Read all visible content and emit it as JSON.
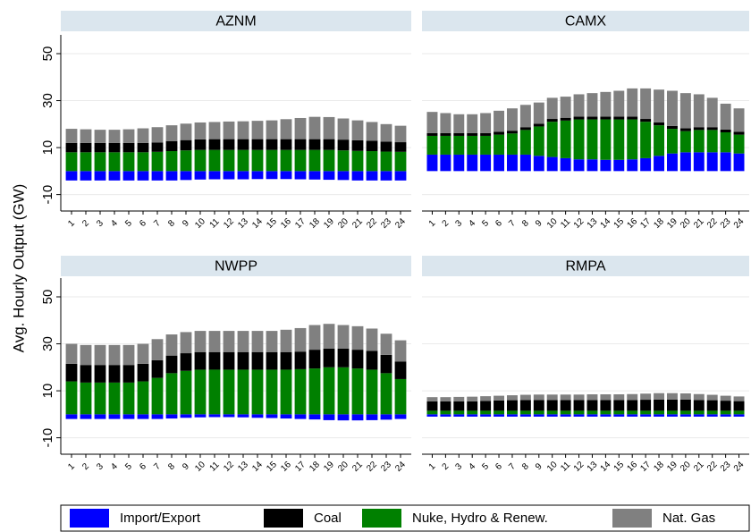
{
  "chart_data": [
    {
      "type": "bar",
      "title": "AZNM",
      "ylabel": "Avg. Hourly Output (GW)",
      "categories": [
        "1",
        "2",
        "3",
        "4",
        "5",
        "6",
        "7",
        "8",
        "9",
        "10",
        "11",
        "12",
        "13",
        "14",
        "15",
        "16",
        "17",
        "18",
        "19",
        "20",
        "21",
        "22",
        "23",
        "24"
      ],
      "series": [
        {
          "name": "Import/Export",
          "color": "#0000ff",
          "values": [
            -4,
            -4,
            -4,
            -4,
            -4,
            -4,
            -4,
            -4,
            -3.8,
            -3.6,
            -3.5,
            -3.5,
            -3.5,
            -3.4,
            -3.4,
            -3.4,
            -3.5,
            -3.6,
            -3.7,
            -3.8,
            -4,
            -4,
            -4,
            -4
          ]
        },
        {
          "name": "Coal",
          "color": "#000000",
          "values": [
            4,
            4,
            4,
            4,
            4,
            4,
            4,
            4.2,
            4.4,
            4.5,
            4.6,
            4.6,
            4.6,
            4.6,
            4.6,
            4.6,
            4.6,
            4.6,
            4.6,
            4.6,
            4.5,
            4.4,
            4.2,
            4.1
          ]
        },
        {
          "name": "Nuke, Hydro & Renew.",
          "color": "#008000",
          "values": [
            8,
            8,
            8,
            8,
            8,
            8,
            8.2,
            8.5,
            8.8,
            9,
            9,
            9,
            9,
            9,
            9,
            9,
            9,
            9,
            9,
            8.8,
            8.6,
            8.5,
            8.3,
            8.2
          ]
        },
        {
          "name": "Nat. Gas",
          "color": "#808080",
          "values": [
            6,
            5.8,
            5.6,
            5.6,
            5.8,
            6.2,
            6.5,
            6.8,
            7,
            7.2,
            7.3,
            7.5,
            7.6,
            7.8,
            8,
            8.5,
            9,
            9.5,
            9.4,
            9,
            8.5,
            8,
            7.5,
            7
          ]
        }
      ],
      "ylim": [
        -17,
        58
      ],
      "yticks": [
        -10,
        10,
        30,
        50
      ],
      "grid": true
    },
    {
      "type": "bar",
      "title": "CAMX",
      "categories": [
        "1",
        "2",
        "3",
        "4",
        "5",
        "6",
        "7",
        "8",
        "9",
        "10",
        "11",
        "12",
        "13",
        "14",
        "15",
        "16",
        "17",
        "18",
        "19",
        "20",
        "21",
        "22",
        "23",
        "24"
      ],
      "series": [
        {
          "name": "Import/Export",
          "color": "#0000ff",
          "values": [
            7,
            7,
            7,
            7,
            7,
            7,
            7,
            7,
            6.5,
            6,
            5.5,
            5,
            5,
            4.8,
            4.8,
            5,
            5.5,
            6.5,
            7.5,
            8,
            8,
            8,
            8,
            7.5
          ]
        },
        {
          "name": "Coal",
          "color": "#000000",
          "values": [
            1.2,
            1.2,
            1.2,
            1.2,
            1.2,
            1.2,
            1.2,
            1.2,
            1.2,
            1.2,
            1.2,
            1.2,
            1.2,
            1.2,
            1.2,
            1.2,
            1.2,
            1.2,
            1.2,
            1.2,
            1.2,
            1.2,
            1.2,
            1.2
          ]
        },
        {
          "name": "Nuke, Hydro & Renew.",
          "color": "#008000",
          "values": [
            8,
            8,
            8,
            8,
            8,
            8.5,
            9,
            10.5,
            12.5,
            15,
            16,
            17,
            17,
            17.2,
            17.2,
            17,
            15.5,
            13,
            10.5,
            9,
            9.5,
            9.5,
            8.5,
            8
          ]
        },
        {
          "name": "Nat. Gas",
          "color": "#808080",
          "values": [
            9,
            8.5,
            8,
            8,
            8.5,
            9,
            9.5,
            9.5,
            9,
            9,
            9,
            9.5,
            10,
            10.5,
            11,
            12,
            13,
            14,
            15,
            15,
            14,
            12.5,
            11,
            10
          ]
        }
      ],
      "ylim": [
        -17,
        58
      ],
      "yticks": [
        -10,
        10,
        30,
        50
      ],
      "grid": true
    },
    {
      "type": "bar",
      "title": "NWPP",
      "categories": [
        "1",
        "2",
        "3",
        "4",
        "5",
        "6",
        "7",
        "8",
        "9",
        "10",
        "11",
        "12",
        "13",
        "14",
        "15",
        "16",
        "17",
        "18",
        "19",
        "20",
        "21",
        "22",
        "23",
        "24"
      ],
      "series": [
        {
          "name": "Import/Export",
          "color": "#0000ff",
          "values": [
            -2,
            -2,
            -2,
            -2,
            -2,
            -2,
            -2,
            -1.8,
            -1.5,
            -1.3,
            -1.2,
            -1.2,
            -1.3,
            -1.5,
            -1.6,
            -1.8,
            -2,
            -2.2,
            -2.5,
            -2.6,
            -2.6,
            -2.5,
            -2.3,
            -2
          ]
        },
        {
          "name": "Coal",
          "color": "#000000",
          "values": [
            7.5,
            7.5,
            7.5,
            7.5,
            7.5,
            7.5,
            7.5,
            7.5,
            7.5,
            7.5,
            7.5,
            7.5,
            7.5,
            7.5,
            7.5,
            7.5,
            7.5,
            8,
            8,
            8,
            8,
            8,
            7.8,
            7.5
          ]
        },
        {
          "name": "Nuke, Hydro & Renew.",
          "color": "#008000",
          "values": [
            14,
            13.5,
            13.5,
            13.5,
            13.5,
            14,
            15.5,
            17.5,
            18.5,
            19,
            19,
            19,
            19,
            19,
            19,
            19,
            19.2,
            19.5,
            20,
            20,
            19.5,
            19,
            17.5,
            15
          ]
        },
        {
          "name": "Nat. Gas",
          "color": "#808080",
          "values": [
            8.5,
            8.5,
            8.5,
            8.5,
            8.5,
            8.5,
            9,
            9,
            9,
            9,
            9,
            9,
            9,
            9,
            9,
            9.5,
            10,
            10.5,
            10.5,
            10,
            10,
            9.5,
            9,
            9
          ]
        }
      ],
      "ylim": [
        -17,
        58
      ],
      "yticks": [
        -10,
        10,
        30,
        50
      ],
      "grid": true
    },
    {
      "type": "bar",
      "title": "RMPA",
      "categories": [
        "1",
        "2",
        "3",
        "4",
        "5",
        "6",
        "7",
        "8",
        "9",
        "10",
        "11",
        "12",
        "13",
        "14",
        "15",
        "16",
        "17",
        "18",
        "19",
        "20",
        "21",
        "22",
        "23",
        "24"
      ],
      "series": [
        {
          "name": "Import/Export",
          "color": "#0000ff",
          "values": [
            -1,
            -1,
            -1,
            -1,
            -1,
            -1,
            -1,
            -1,
            -1,
            -1,
            -1,
            -1,
            -1,
            -1,
            -1,
            -1,
            -1,
            -1,
            -1,
            -1,
            -1,
            -1,
            -1,
            -1
          ]
        },
        {
          "name": "Coal",
          "color": "#000000",
          "values": [
            4,
            4,
            4,
            4,
            4.2,
            4.4,
            4.5,
            4.6,
            4.6,
            4.6,
            4.6,
            4.6,
            4.6,
            4.6,
            4.6,
            4.6,
            4.7,
            4.8,
            4.8,
            4.8,
            4.6,
            4.5,
            4.3,
            4.1
          ]
        },
        {
          "name": "Nuke, Hydro & Renew.",
          "color": "#008000",
          "values": [
            1.5,
            1.5,
            1.5,
            1.5,
            1.5,
            1.5,
            1.5,
            1.5,
            1.5,
            1.5,
            1.5,
            1.5,
            1.5,
            1.5,
            1.5,
            1.5,
            1.5,
            1.5,
            1.5,
            1.5,
            1.5,
            1.5,
            1.5,
            1.5
          ]
        },
        {
          "name": "Nat. Gas",
          "color": "#808080",
          "values": [
            1.8,
            1.8,
            1.9,
            2,
            2,
            2,
            2.1,
            2.2,
            2.3,
            2.3,
            2.3,
            2.3,
            2.4,
            2.4,
            2.4,
            2.5,
            2.6,
            2.7,
            2.7,
            2.6,
            2.5,
            2.3,
            2.1,
            2
          ]
        }
      ],
      "ylim": [
        -17,
        58
      ],
      "yticks": [
        -10,
        10,
        30,
        50
      ],
      "grid": true
    }
  ]
}
